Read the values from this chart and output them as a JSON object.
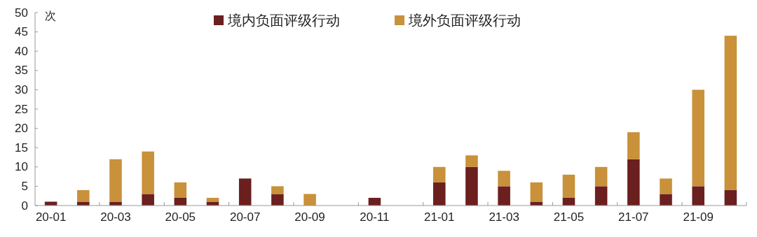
{
  "chart_data": {
    "type": "bar",
    "stacked": true,
    "ylabel": "次",
    "legend": "top",
    "categories": [
      "20-01",
      null,
      "20-03",
      null,
      "20-05",
      null,
      "20-07",
      null,
      "20-09",
      null,
      "20-11",
      null,
      "21-01",
      null,
      "21-03",
      null,
      "21-05",
      null,
      "21-07",
      null,
      "21-09",
      null
    ],
    "series": [
      {
        "name": "境内负面评级行动",
        "color": "#6b1f1f",
        "values": [
          1,
          1,
          1,
          3,
          2,
          1,
          7,
          3,
          0,
          0,
          2,
          0,
          6,
          10,
          5,
          1,
          2,
          5,
          12,
          3,
          5,
          4
        ]
      },
      {
        "name": "境外负面评级行动",
        "color": "#c8913a",
        "values": [
          0,
          3,
          11,
          11,
          4,
          1,
          0,
          2,
          3,
          0,
          0,
          0,
          4,
          3,
          4,
          5,
          6,
          5,
          7,
          4,
          25,
          40
        ]
      }
    ],
    "ylim": [
      0,
      50
    ],
    "yticks": [
      0,
      5,
      10,
      15,
      20,
      25,
      30,
      35,
      40,
      45,
      50
    ]
  }
}
